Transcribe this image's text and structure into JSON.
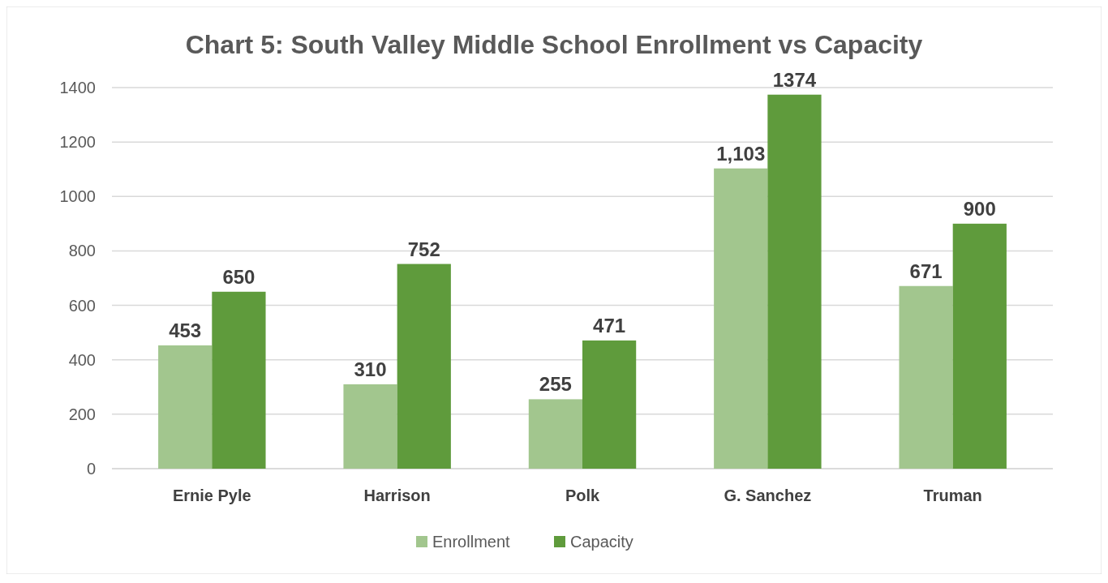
{
  "chart_data": {
    "type": "bar",
    "title": "Chart 5: South Valley Middle School Enrollment vs Capacity",
    "categories": [
      "Ernie Pyle",
      "Harrison",
      "Polk",
      "G. Sanchez",
      "Truman"
    ],
    "series": [
      {
        "name": "Enrollment",
        "color": "#a2c68e",
        "values": [
          453,
          310,
          255,
          1103,
          671
        ],
        "value_labels": [
          "453",
          "310",
          "255",
          "1,103",
          "671"
        ]
      },
      {
        "name": "Capacity",
        "color": "#5f9b3c",
        "values": [
          650,
          752,
          471,
          1374,
          900
        ],
        "value_labels": [
          "650",
          "752",
          "471",
          "1374",
          "900"
        ]
      }
    ],
    "ylim": [
      0,
      1400
    ],
    "yticks": [
      0,
      200,
      400,
      600,
      800,
      1000,
      1200,
      1400
    ],
    "grid": "y",
    "legend": "bottom"
  }
}
